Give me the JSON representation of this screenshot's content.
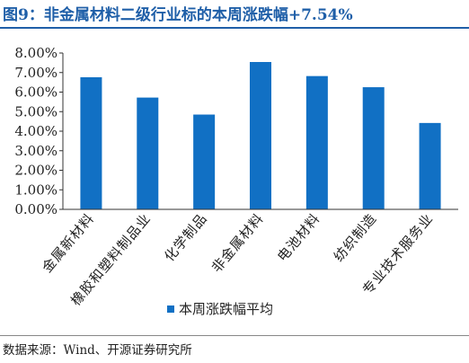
{
  "title": "图9：非金属材料二级行业标的本周涨跌幅+7.54%",
  "source": "数据来源：Wind、开源证券研究所",
  "colors": {
    "bar": "#1170c4",
    "title": "#1f5fa8",
    "axis": "#333333"
  },
  "chart_data": {
    "type": "bar",
    "categories": [
      "金属新材料",
      "橡胶和塑料制品业",
      "化学制品",
      "非金属材料",
      "电池材料",
      "纺织制造",
      "专业技术服务业"
    ],
    "series": [
      {
        "name": "本周涨跌幅平均",
        "values": [
          6.76,
          5.72,
          4.85,
          7.54,
          6.82,
          6.25,
          4.42
        ]
      }
    ],
    "ylim": [
      0,
      8
    ],
    "yticks": [
      "0.00%",
      "1.00%",
      "2.00%",
      "3.00%",
      "4.00%",
      "5.00%",
      "6.00%",
      "7.00%",
      "8.00%"
    ],
    "grid": false,
    "legend_position": "bottom"
  }
}
